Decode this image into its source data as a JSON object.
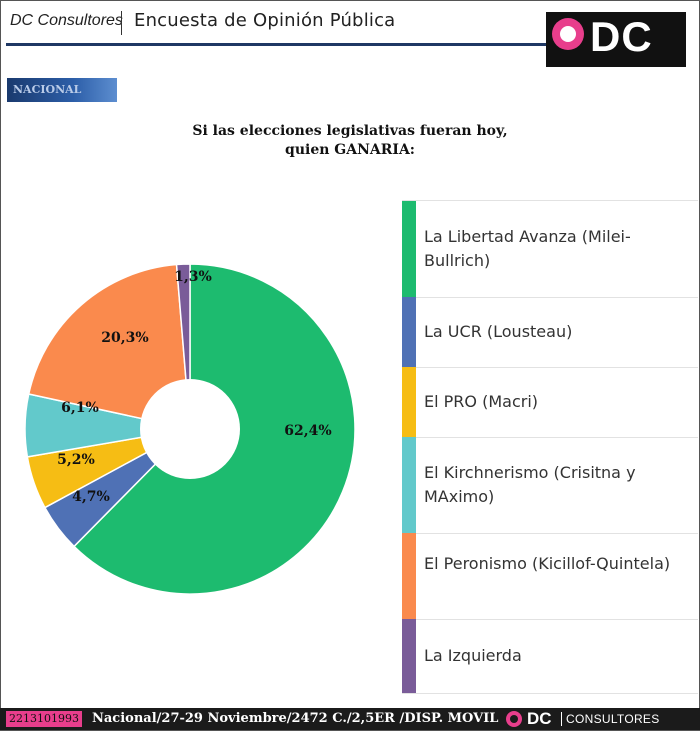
{
  "header": {
    "brand": "DC Consultores",
    "title": "Encuesta de Opinión Pública",
    "logo_text": "DC"
  },
  "badge": "NACIONAL",
  "question": {
    "line1": "Si las elecciones legislativas fueran hoy,",
    "line2": "quien GANARIA:"
  },
  "chart_data": {
    "type": "pie",
    "donut": true,
    "legend_position": "right",
    "slices": [
      {
        "label": "La Libertad Avanza (Milei-Bullrich)",
        "value": 62.4,
        "display": "62,4%",
        "color": "#1dbb6f"
      },
      {
        "label": "La UCR (Lousteau)",
        "value": 4.7,
        "display": "4,7%",
        "color": "#4f71b5"
      },
      {
        "label": "El PRO (Macri)",
        "value": 5.2,
        "display": "5,2%",
        "color": "#f6bd14"
      },
      {
        "label": "El Kirchnerismo (Crisitna y MAximo)",
        "value": 6.1,
        "display": "6,1%",
        "color": "#62c9cb"
      },
      {
        "label": "El Peronismo (Kicillof-Quintela)",
        "value": 20.3,
        "display": "20,3%",
        "color": "#fa8a4d"
      },
      {
        "label": "La Izquierda",
        "value": 1.3,
        "display": "1,3%",
        "color": "#7a5c99"
      }
    ]
  },
  "footer": {
    "phone": "2213101993",
    "info": "Nacional/27-29 Noviembre/2472 C./2,5ER /DISP. MOVIL",
    "logo_dc": "DC",
    "logo_consultores": "CONSULTORES"
  },
  "colors": {
    "header_rule": "#1f3864",
    "brand_pink": "#e83e8c",
    "footer_bg": "#1b1b1b"
  }
}
